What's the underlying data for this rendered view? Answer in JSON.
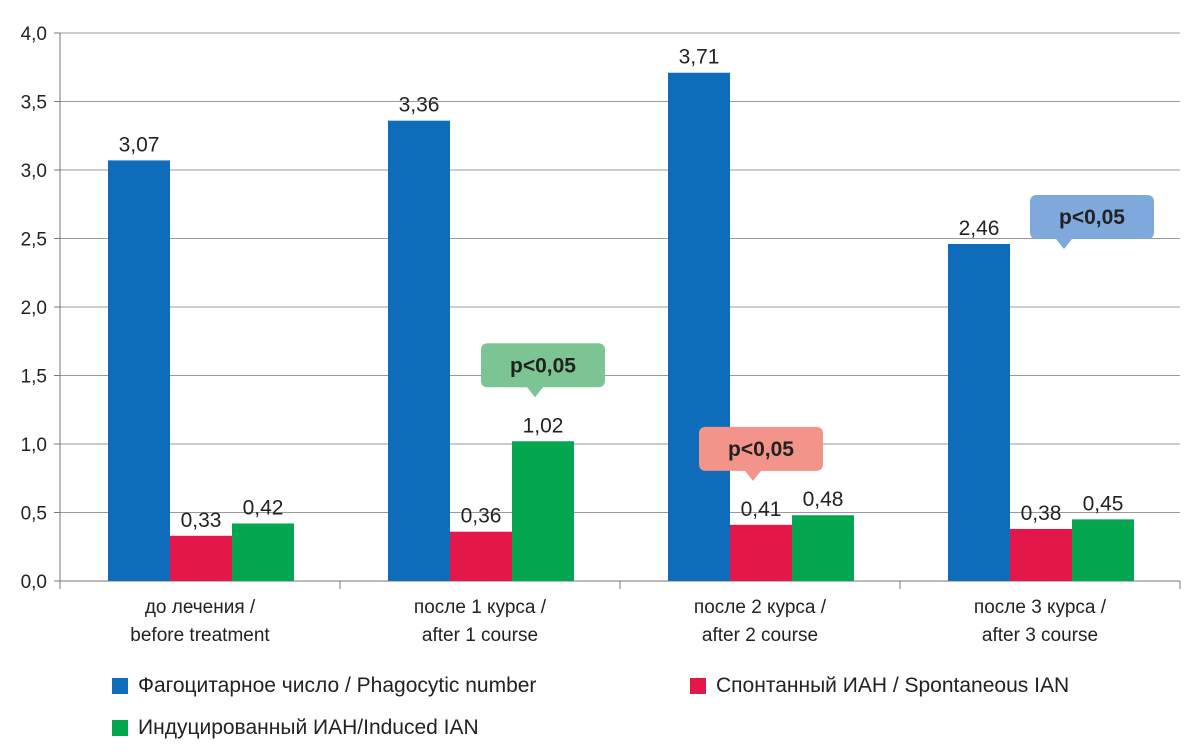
{
  "chart_data": {
    "type": "bar",
    "categories": [
      [
        "до лечения /",
        "before treatment"
      ],
      [
        "после 1 курса /",
        "after 1 course"
      ],
      [
        "после 2 курса /",
        "after 2 course"
      ],
      [
        "после 3 курса /",
        "after 3 course"
      ]
    ],
    "series": [
      {
        "name": "Фагоцитарное число / Phagocytic number",
        "color": "#0E6CBB",
        "values": [
          3.07,
          3.36,
          3.71,
          2.46
        ],
        "labels": [
          "3,07",
          "3,36",
          "3,71",
          "2,46"
        ]
      },
      {
        "name": "Спонтанный ИАН / Spontaneous IAN",
        "color": "#E3174A",
        "values": [
          0.33,
          0.36,
          0.41,
          0.38
        ],
        "labels": [
          "0,33",
          "0,36",
          "0,41",
          "0,38"
        ]
      },
      {
        "name": "Индуцированный ИАН/Induced IAN",
        "color": "#05A650",
        "values": [
          0.42,
          1.02,
          0.48,
          0.45
        ],
        "labels": [
          "0,42",
          "1,02",
          "0,48",
          "0,45"
        ]
      }
    ],
    "ylim": [
      0,
      4.0
    ],
    "yticks": [
      {
        "value": 0,
        "label": "0,0"
      },
      {
        "value": 0.5,
        "label": "0,5"
      },
      {
        "value": 1.0,
        "label": "1,0"
      },
      {
        "value": 1.5,
        "label": "1,5"
      },
      {
        "value": 2.0,
        "label": "2,0"
      },
      {
        "value": 2.5,
        "label": "2,5"
      },
      {
        "value": 3.0,
        "label": "3,0"
      },
      {
        "value": 3.5,
        "label": "3,5"
      },
      {
        "value": 4.0,
        "label": "4,0"
      }
    ],
    "grid": true,
    "legend_position": "bottom",
    "annotations": [
      {
        "text": "p<0,05",
        "category": 1,
        "series": 2,
        "color": "#7CC494"
      },
      {
        "text": "p<0,05",
        "category": 2,
        "series": 1,
        "color": "#F2948A"
      },
      {
        "text": "p<0,05",
        "category": 3,
        "series": 0,
        "color": "#7FA8DD"
      }
    ]
  }
}
